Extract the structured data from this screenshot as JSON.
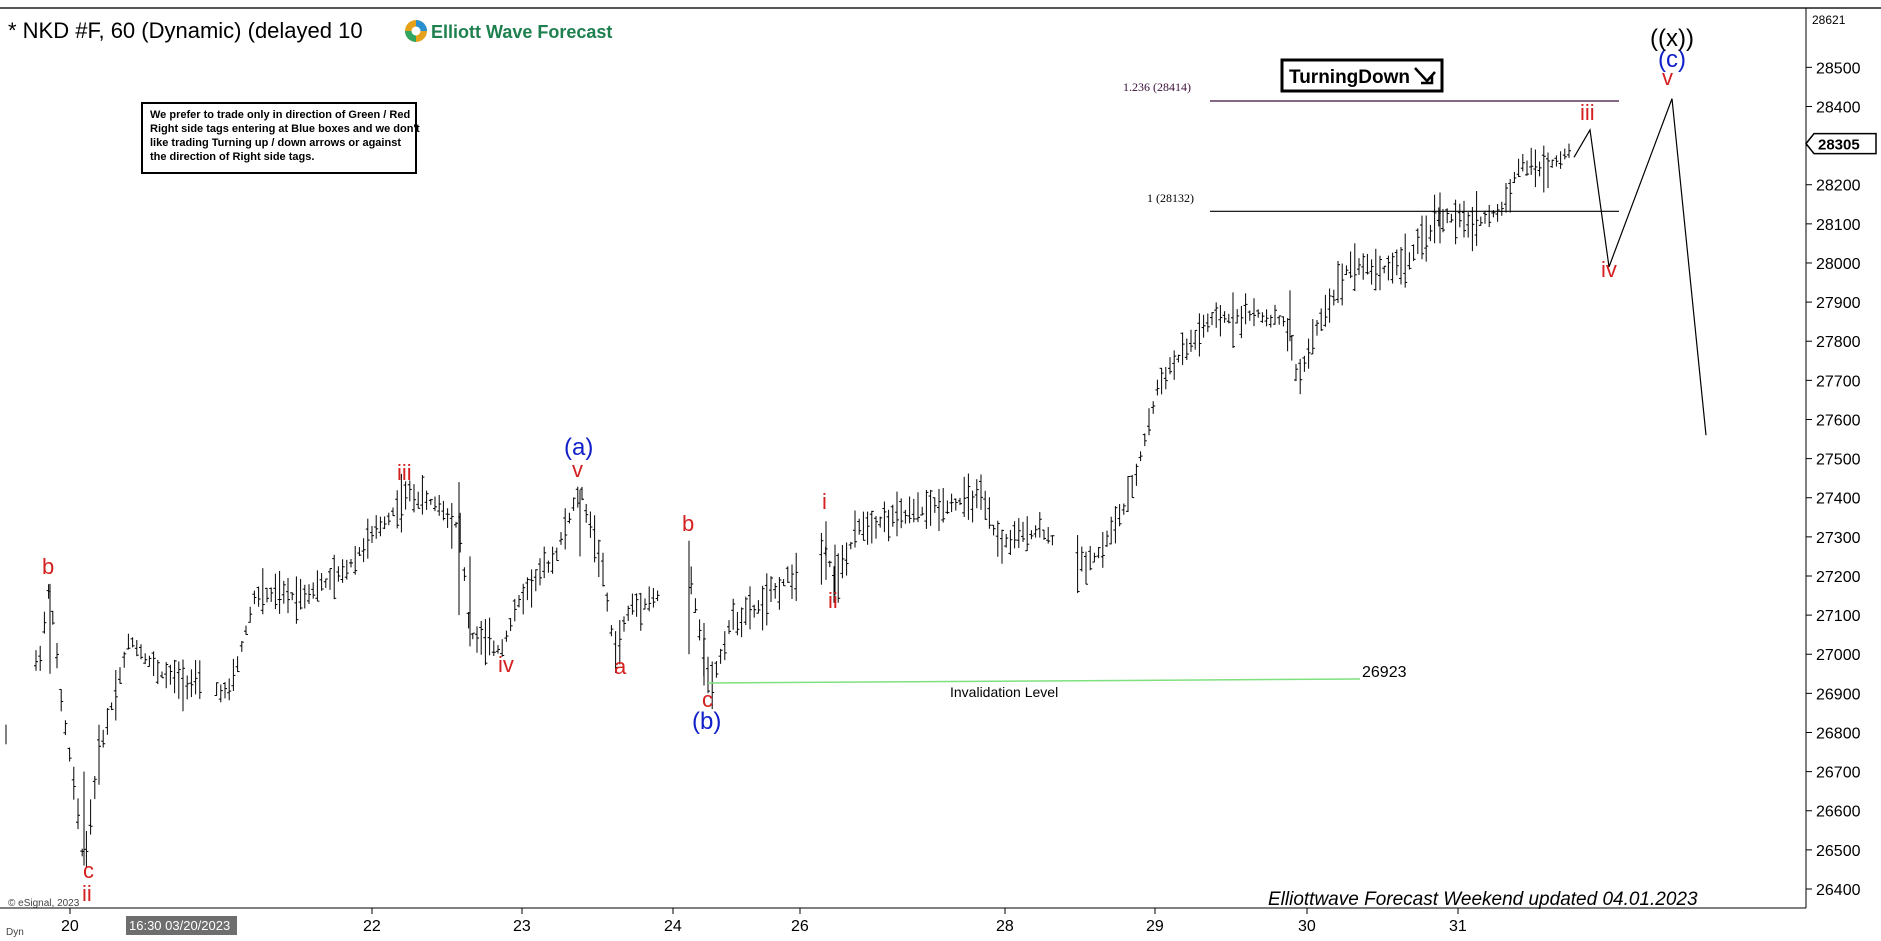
{
  "header": {
    "title": "* NKD #F, 60 (Dynamic) (delayed 10",
    "brand": "Elliott Wave Forecast",
    "brand_color": "#1e7f4f"
  },
  "note": {
    "lines": [
      "We prefer to trade only in direction of Green / Red",
      "Right side tags entering at Blue boxes and we don't",
      "like trading Turning up / down arrows or against",
      "the direction of Right side tags."
    ]
  },
  "turning_badge": {
    "label": "TurningDown",
    "icon": "arrow-down-right-icon"
  },
  "price_axis": {
    "ticks": [
      28500,
      28400,
      28300,
      28200,
      28100,
      28000,
      27900,
      27800,
      27700,
      27600,
      27500,
      27400,
      27300,
      27200,
      27100,
      27000,
      26900,
      26800,
      26700,
      26600,
      26500,
      26400
    ],
    "top_label": "28621",
    "current_price": "28305"
  },
  "time_axis": {
    "ticks": [
      "20",
      "22",
      "23",
      "24",
      "26",
      "28",
      "29",
      "30",
      "31"
    ],
    "cursor_label": "16:30 03/20/2023",
    "corner_label": "Dyn"
  },
  "fib_levels": [
    {
      "label": "1.236 (28414)",
      "value": 28414,
      "color": "#3a0e3a"
    },
    {
      "label": "1 (28132)",
      "value": 28132,
      "color": "#000000"
    }
  ],
  "invalidation": {
    "label": "Invalidation Level",
    "value_label": "26923",
    "value": 26923,
    "color": "#7ee07e"
  },
  "wave_labels": {
    "b_left": "b",
    "c_low": "c",
    "ii_low": "ii",
    "iii_left": "iii",
    "iv_left": "iv",
    "a_paren": "(a)",
    "v_a": "v",
    "a_small": "a",
    "b_mid": "b",
    "c_mid": "c",
    "b_paren": "(b)",
    "i_mid": "i",
    "ii_mid": "ii",
    "iii_right": "iii",
    "iv_right": "iv",
    "v_right": "v",
    "c_paren": "(c)",
    "x_dparen": "((x))"
  },
  "footer": {
    "updated": "Elliottwave Forecast Weekend updated 04.01.2023",
    "copyright": "© eSignal, 2023"
  },
  "colors": {
    "wave_red": "#d42020",
    "wave_blue": "#1020c8",
    "bars": "#000000"
  },
  "chart_data": {
    "type": "ohlc",
    "instrument": "NKD #F",
    "interval": "60",
    "y_range": [
      26350,
      28640
    ],
    "key_points": [
      {
        "label": "b",
        "price": 27180
      },
      {
        "label": "c / ii",
        "price": 26460
      },
      {
        "label": "iii",
        "price": 27410
      },
      {
        "label": "iv",
        "price": 27000
      },
      {
        "label": "(a) v",
        "price": 27430
      },
      {
        "label": "a",
        "price": 27000
      },
      {
        "label": "b",
        "price": 27290
      },
      {
        "label": "c (b)",
        "price": 26920
      },
      {
        "label": "i",
        "price": 27340
      },
      {
        "label": "ii",
        "price": 27150
      },
      {
        "label": "iii",
        "price": 28340
      },
      {
        "label": "iv",
        "price": 27990
      },
      {
        "label": "v (c) ((x))",
        "price": 28420
      }
    ],
    "projection_end_price": 27560
  }
}
